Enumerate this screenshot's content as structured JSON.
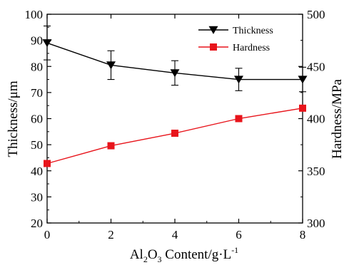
{
  "chart_data": {
    "type": "line",
    "x": [
      0,
      2,
      4,
      6,
      8
    ],
    "xlim": [
      0,
      8
    ],
    "x_ticks": [
      "0",
      "2",
      "4",
      "6",
      "8"
    ],
    "xlabel": {
      "prefix": "Al",
      "sub1": "2",
      "mid": "O",
      "sub2": "3",
      "suffix": " Content/g·L",
      "sup": "-1"
    },
    "left_axis": {
      "label": "Thickness/μm",
      "ylim": [
        20,
        100
      ],
      "ticks": [
        "20",
        "30",
        "40",
        "50",
        "60",
        "70",
        "80",
        "90",
        "100"
      ]
    },
    "right_axis": {
      "label": "Hardness/MPa",
      "ylim": [
        300,
        500
      ],
      "ticks": [
        "300",
        "350",
        "400",
        "450",
        "500"
      ]
    },
    "series": [
      {
        "name": "Thickness",
        "axis": "left",
        "color": "#000000",
        "marker": "triangle-down",
        "values": [
          89,
          80.5,
          77.5,
          75,
          75
        ],
        "error": [
          6.5,
          5.5,
          4.7,
          4.3,
          4.7
        ]
      },
      {
        "name": "Hardness",
        "axis": "right",
        "color": "#e8141b",
        "marker": "square",
        "values": [
          357,
          374,
          386,
          400,
          410
        ]
      }
    ],
    "legend_position": "top-right",
    "grid": false
  }
}
